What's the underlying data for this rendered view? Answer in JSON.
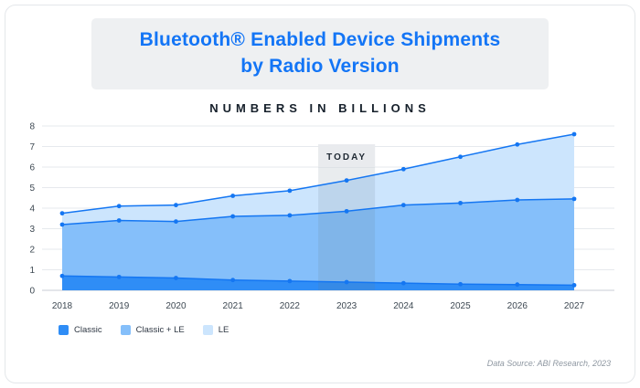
{
  "header": {
    "title_line1": "Bluetooth® Enabled Device Shipments",
    "title_line2": "by Radio Version",
    "subtitle": "NUMBERS IN BILLIONS"
  },
  "chart_data": {
    "type": "area",
    "stacked": true,
    "title": "Bluetooth Enabled Device Shipments by Radio Version",
    "units": "Billions",
    "categories": [
      "2018",
      "2019",
      "2020",
      "2021",
      "2022",
      "2023",
      "2024",
      "2025",
      "2026",
      "2027"
    ],
    "series": [
      {
        "name": "Classic",
        "color": "#2f8df6",
        "values": [
          0.7,
          0.65,
          0.6,
          0.5,
          0.45,
          0.4,
          0.35,
          0.3,
          0.28,
          0.25
        ]
      },
      {
        "name": "Classic + LE",
        "color": "#85bffa",
        "values": [
          2.5,
          2.75,
          2.75,
          3.1,
          3.2,
          3.45,
          3.8,
          3.95,
          4.12,
          4.2
        ]
      },
      {
        "name": "LE",
        "color": "#cce5fd",
        "values": [
          0.55,
          0.7,
          0.8,
          1.0,
          1.2,
          1.5,
          1.75,
          2.25,
          2.7,
          3.15
        ]
      }
    ],
    "cumulative_totals": [
      3.75,
      4.1,
      4.15,
      4.6,
      4.85,
      5.35,
      5.9,
      6.5,
      7.1,
      7.6
    ],
    "ylim": [
      0,
      8
    ],
    "yticks": [
      0,
      1,
      2,
      3,
      4,
      5,
      6,
      7,
      8
    ],
    "grid": true,
    "legend_position": "bottom-left",
    "line_color": "#1476f2",
    "annotation": {
      "label": "TODAY",
      "x": "2023"
    }
  },
  "footer": {
    "source": "Data Source: ABI Research, 2023"
  }
}
